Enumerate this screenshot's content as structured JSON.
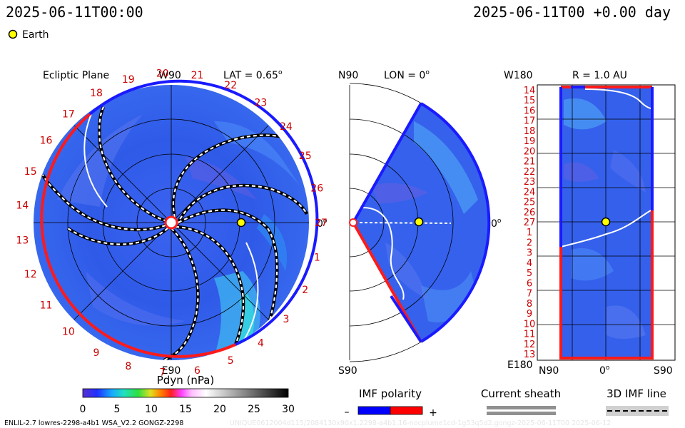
{
  "header": {
    "left_time": "2025-06-11T00:00",
    "right_time": "2025-06-11T00 +0.00 day",
    "legend_label": "Earth"
  },
  "ecliptic_panel": {
    "title": "Ecliptic Plane",
    "lat_label": "LAT = 0.65",
    "lat_sup": "o",
    "top_label": "W90",
    "bottom_label": "E90",
    "right_label": "0",
    "right_sup": "o",
    "carrington_labels": [
      "19",
      "20",
      "21",
      "22",
      "23",
      "24",
      "25",
      "26",
      "27",
      "1",
      "2",
      "3",
      "4",
      "5",
      "6",
      "7",
      "8",
      "9",
      "10",
      "11",
      "12",
      "13",
      "14",
      "15",
      "16",
      "17",
      "18"
    ]
  },
  "meridional_panel": {
    "title": "LON = 0",
    "title_sup": "o",
    "top_label": "N90",
    "bottom_label": "S90",
    "right_label": "0",
    "right_sup": "o"
  },
  "radial_panel": {
    "title": "R = 1.0 AU",
    "top_left_label": "W180",
    "bottom_left_label": "E180",
    "x_labels": [
      "N90",
      "0",
      "S90"
    ],
    "x_sup": "o",
    "y_labels": [
      "14",
      "15",
      "16",
      "17",
      "18",
      "19",
      "20",
      "21",
      "22",
      "23",
      "24",
      "25",
      "26",
      "27",
      "1",
      "2",
      "3",
      "4",
      "5",
      "6",
      "7",
      "8",
      "9",
      "10",
      "11",
      "12",
      "13"
    ]
  },
  "colorbar": {
    "title": "Pdyn (nPa)",
    "ticks": [
      "0",
      "5",
      "10",
      "15",
      "20",
      "25",
      "30"
    ],
    "range": [
      0,
      30
    ]
  },
  "imf_legend": {
    "polarity_title": "IMF polarity",
    "minus": "–",
    "plus": "+",
    "sheath_title": "Current sheath",
    "imf_line_title": "3D IMF line"
  },
  "footer": {
    "left": "ENLIL-2.7 lowres-2298-a4b1 WSA_V2.2 GONGZ-2298",
    "right": "UNIQUE0612004d115/2084130x90x1.2298-a4b1.16-nocplume1cd-1g53q5d2.gongz-2025-06-11T00   2025-06-12"
  },
  "chart_data": [
    {
      "type": "heatmap",
      "panel": "ecliptic plane",
      "quantity": "Pdyn (nPa)",
      "projection": "polar (heliocentric distance vs longitude)",
      "earth_marker": {
        "lon_deg": 0,
        "r_au": 1.0
      },
      "polarity_boundary": {
        "negative_arc_lon_deg": [
          -185,
          110
        ],
        "positive_arc_lon_deg": [
          110,
          175
        ]
      }
    },
    {
      "type": "heatmap",
      "panel": "meridional plane",
      "quantity": "Pdyn (nPa)",
      "lat_range_deg": [
        -60,
        60
      ],
      "earth_marker": {
        "lat_deg": 0,
        "r_au": 1.0
      }
    },
    {
      "type": "heatmap",
      "panel": "R = 1.0 AU",
      "quantity": "Pdyn (nPa)",
      "x_axis": "latitude N90 to S90",
      "y_axis": "Carrington rotation day label",
      "earth_marker": {
        "row_label": "27",
        "lat_deg": 0
      }
    }
  ],
  "colors": {
    "negative_polarity": "#0000ff",
    "positive_polarity": "#ff0000",
    "earth_fill": "#ffff00",
    "label_red": "#cc0000"
  }
}
